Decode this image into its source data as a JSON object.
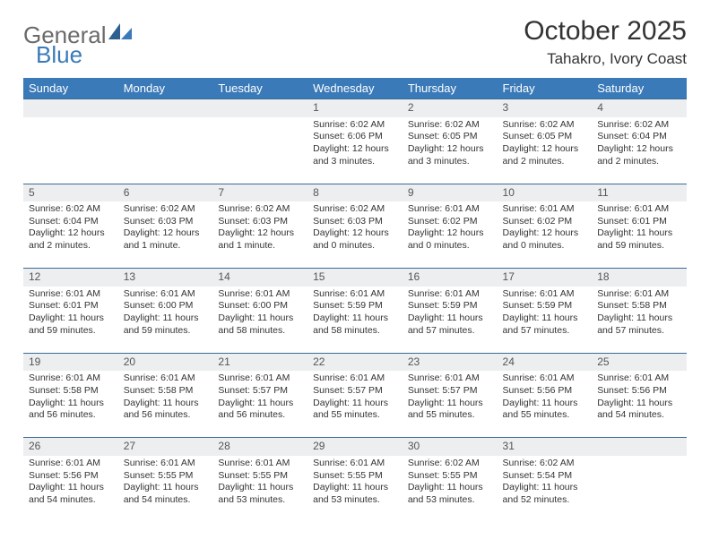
{
  "colors": {
    "header_bg": "#3a7ab8",
    "header_text": "#ffffff",
    "rule": "#3a6a98",
    "daynum_bg": "#eceeef",
    "body_text": "#333333",
    "logo_gray": "#6a6a6a",
    "logo_blue": "#3a7ab8",
    "page_bg": "#ffffff"
  },
  "typography": {
    "month_title_fontsize": 30,
    "location_fontsize": 17,
    "weekday_fontsize": 13,
    "daynum_fontsize": 12,
    "cell_fontsize": 10.5,
    "font_family": "Arial"
  },
  "logo": {
    "part1": "General",
    "part2": "Blue"
  },
  "title": "October 2025",
  "location": "Tahakro, Ivory Coast",
  "weekdays": [
    "Sunday",
    "Monday",
    "Tuesday",
    "Wednesday",
    "Thursday",
    "Friday",
    "Saturday"
  ],
  "weeks": [
    [
      {
        "n": "",
        "sunrise": "",
        "sunset": "",
        "daylight": ""
      },
      {
        "n": "",
        "sunrise": "",
        "sunset": "",
        "daylight": ""
      },
      {
        "n": "",
        "sunrise": "",
        "sunset": "",
        "daylight": ""
      },
      {
        "n": "1",
        "sunrise": "Sunrise: 6:02 AM",
        "sunset": "Sunset: 6:06 PM",
        "daylight": "Daylight: 12 hours and 3 minutes."
      },
      {
        "n": "2",
        "sunrise": "Sunrise: 6:02 AM",
        "sunset": "Sunset: 6:05 PM",
        "daylight": "Daylight: 12 hours and 3 minutes."
      },
      {
        "n": "3",
        "sunrise": "Sunrise: 6:02 AM",
        "sunset": "Sunset: 6:05 PM",
        "daylight": "Daylight: 12 hours and 2 minutes."
      },
      {
        "n": "4",
        "sunrise": "Sunrise: 6:02 AM",
        "sunset": "Sunset: 6:04 PM",
        "daylight": "Daylight: 12 hours and 2 minutes."
      }
    ],
    [
      {
        "n": "5",
        "sunrise": "Sunrise: 6:02 AM",
        "sunset": "Sunset: 6:04 PM",
        "daylight": "Daylight: 12 hours and 2 minutes."
      },
      {
        "n": "6",
        "sunrise": "Sunrise: 6:02 AM",
        "sunset": "Sunset: 6:03 PM",
        "daylight": "Daylight: 12 hours and 1 minute."
      },
      {
        "n": "7",
        "sunrise": "Sunrise: 6:02 AM",
        "sunset": "Sunset: 6:03 PM",
        "daylight": "Daylight: 12 hours and 1 minute."
      },
      {
        "n": "8",
        "sunrise": "Sunrise: 6:02 AM",
        "sunset": "Sunset: 6:03 PM",
        "daylight": "Daylight: 12 hours and 0 minutes."
      },
      {
        "n": "9",
        "sunrise": "Sunrise: 6:01 AM",
        "sunset": "Sunset: 6:02 PM",
        "daylight": "Daylight: 12 hours and 0 minutes."
      },
      {
        "n": "10",
        "sunrise": "Sunrise: 6:01 AM",
        "sunset": "Sunset: 6:02 PM",
        "daylight": "Daylight: 12 hours and 0 minutes."
      },
      {
        "n": "11",
        "sunrise": "Sunrise: 6:01 AM",
        "sunset": "Sunset: 6:01 PM",
        "daylight": "Daylight: 11 hours and 59 minutes."
      }
    ],
    [
      {
        "n": "12",
        "sunrise": "Sunrise: 6:01 AM",
        "sunset": "Sunset: 6:01 PM",
        "daylight": "Daylight: 11 hours and 59 minutes."
      },
      {
        "n": "13",
        "sunrise": "Sunrise: 6:01 AM",
        "sunset": "Sunset: 6:00 PM",
        "daylight": "Daylight: 11 hours and 59 minutes."
      },
      {
        "n": "14",
        "sunrise": "Sunrise: 6:01 AM",
        "sunset": "Sunset: 6:00 PM",
        "daylight": "Daylight: 11 hours and 58 minutes."
      },
      {
        "n": "15",
        "sunrise": "Sunrise: 6:01 AM",
        "sunset": "Sunset: 5:59 PM",
        "daylight": "Daylight: 11 hours and 58 minutes."
      },
      {
        "n": "16",
        "sunrise": "Sunrise: 6:01 AM",
        "sunset": "Sunset: 5:59 PM",
        "daylight": "Daylight: 11 hours and 57 minutes."
      },
      {
        "n": "17",
        "sunrise": "Sunrise: 6:01 AM",
        "sunset": "Sunset: 5:59 PM",
        "daylight": "Daylight: 11 hours and 57 minutes."
      },
      {
        "n": "18",
        "sunrise": "Sunrise: 6:01 AM",
        "sunset": "Sunset: 5:58 PM",
        "daylight": "Daylight: 11 hours and 57 minutes."
      }
    ],
    [
      {
        "n": "19",
        "sunrise": "Sunrise: 6:01 AM",
        "sunset": "Sunset: 5:58 PM",
        "daylight": "Daylight: 11 hours and 56 minutes."
      },
      {
        "n": "20",
        "sunrise": "Sunrise: 6:01 AM",
        "sunset": "Sunset: 5:58 PM",
        "daylight": "Daylight: 11 hours and 56 minutes."
      },
      {
        "n": "21",
        "sunrise": "Sunrise: 6:01 AM",
        "sunset": "Sunset: 5:57 PM",
        "daylight": "Daylight: 11 hours and 56 minutes."
      },
      {
        "n": "22",
        "sunrise": "Sunrise: 6:01 AM",
        "sunset": "Sunset: 5:57 PM",
        "daylight": "Daylight: 11 hours and 55 minutes."
      },
      {
        "n": "23",
        "sunrise": "Sunrise: 6:01 AM",
        "sunset": "Sunset: 5:57 PM",
        "daylight": "Daylight: 11 hours and 55 minutes."
      },
      {
        "n": "24",
        "sunrise": "Sunrise: 6:01 AM",
        "sunset": "Sunset: 5:56 PM",
        "daylight": "Daylight: 11 hours and 55 minutes."
      },
      {
        "n": "25",
        "sunrise": "Sunrise: 6:01 AM",
        "sunset": "Sunset: 5:56 PM",
        "daylight": "Daylight: 11 hours and 54 minutes."
      }
    ],
    [
      {
        "n": "26",
        "sunrise": "Sunrise: 6:01 AM",
        "sunset": "Sunset: 5:56 PM",
        "daylight": "Daylight: 11 hours and 54 minutes."
      },
      {
        "n": "27",
        "sunrise": "Sunrise: 6:01 AM",
        "sunset": "Sunset: 5:55 PM",
        "daylight": "Daylight: 11 hours and 54 minutes."
      },
      {
        "n": "28",
        "sunrise": "Sunrise: 6:01 AM",
        "sunset": "Sunset: 5:55 PM",
        "daylight": "Daylight: 11 hours and 53 minutes."
      },
      {
        "n": "29",
        "sunrise": "Sunrise: 6:01 AM",
        "sunset": "Sunset: 5:55 PM",
        "daylight": "Daylight: 11 hours and 53 minutes."
      },
      {
        "n": "30",
        "sunrise": "Sunrise: 6:02 AM",
        "sunset": "Sunset: 5:55 PM",
        "daylight": "Daylight: 11 hours and 53 minutes."
      },
      {
        "n": "31",
        "sunrise": "Sunrise: 6:02 AM",
        "sunset": "Sunset: 5:54 PM",
        "daylight": "Daylight: 11 hours and 52 minutes."
      },
      {
        "n": "",
        "sunrise": "",
        "sunset": "",
        "daylight": ""
      }
    ]
  ]
}
